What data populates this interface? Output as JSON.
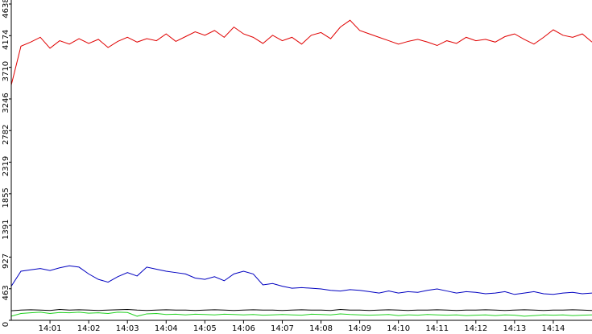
{
  "chart_data": {
    "type": "line",
    "categories": [
      null,
      null,
      null,
      null,
      "14:01",
      null,
      null,
      null,
      "14:02",
      null,
      null,
      null,
      "14:03",
      null,
      null,
      null,
      "14:04",
      null,
      null,
      null,
      "14:05",
      null,
      null,
      null,
      "14:06",
      null,
      null,
      null,
      "14:07",
      null,
      null,
      null,
      "14:08",
      null,
      null,
      null,
      "14:09",
      null,
      null,
      null,
      "14:10",
      null,
      null,
      null,
      "14:11",
      null,
      null,
      null,
      "14:12",
      null,
      null,
      null,
      "14:13",
      null,
      null,
      null,
      "14:14",
      null,
      null,
      null,
      null
    ],
    "series": [
      {
        "color": "#e00000",
        "values": [
          3450,
          4020,
          4080,
          4150,
          3990,
          4100,
          4050,
          4130,
          4060,
          4120,
          4000,
          4090,
          4150,
          4080,
          4130,
          4100,
          4200,
          4090,
          4160,
          4230,
          4180,
          4250,
          4150,
          4300,
          4200,
          4150,
          4060,
          4180,
          4100,
          4150,
          4050,
          4180,
          4220,
          4130,
          4300,
          4400,
          4250,
          4200,
          4150,
          4100,
          4050,
          4090,
          4120,
          4080,
          4030,
          4100,
          4060,
          4150,
          4100,
          4120,
          4080,
          4160,
          4200,
          4120,
          4050,
          4150,
          4260,
          4180,
          4150,
          4200,
          4080
        ]
      },
      {
        "color": "#0000c0",
        "values": [
          500,
          720,
          740,
          760,
          730,
          770,
          800,
          780,
          680,
          600,
          560,
          640,
          700,
          650,
          780,
          750,
          720,
          700,
          680,
          620,
          600,
          640,
          580,
          680,
          720,
          680,
          520,
          540,
          500,
          470,
          480,
          470,
          460,
          440,
          430,
          450,
          440,
          420,
          400,
          430,
          400,
          420,
          410,
          440,
          460,
          430,
          400,
          420,
          410,
          390,
          400,
          420,
          380,
          400,
          420,
          390,
          380,
          400,
          410,
          390,
          400
        ]
      },
      {
        "color": "#000000",
        "values": [
          140,
          150,
          155,
          150,
          145,
          160,
          150,
          155,
          150,
          145,
          150,
          155,
          160,
          150,
          145,
          150,
          155,
          150,
          150,
          145,
          150,
          155,
          150,
          145,
          150,
          155,
          150,
          150,
          145,
          150,
          155,
          150,
          150,
          145,
          160,
          150,
          150,
          145,
          150,
          155,
          150,
          145,
          150,
          150,
          155,
          150,
          145,
          150,
          150,
          155,
          150,
          145,
          150,
          155,
          150,
          145,
          150,
          150,
          155,
          150,
          145
        ]
      },
      {
        "color": "#20d020",
        "values": [
          60,
          100,
          110,
          120,
          100,
          115,
          110,
          120,
          105,
          110,
          100,
          120,
          115,
          60,
          95,
          100,
          85,
          90,
          80,
          90,
          85,
          80,
          90,
          85,
          80,
          85,
          75,
          80,
          85,
          80,
          75,
          90,
          85,
          80,
          95,
          85,
          80,
          75,
          80,
          85,
          70,
          80,
          75,
          85,
          80,
          75,
          80,
          70,
          75,
          80,
          70,
          80,
          75,
          60,
          70,
          80,
          75,
          80,
          70,
          75,
          80
        ]
      }
    ],
    "ylim": [
      0,
      4638
    ],
    "yticks": [
      0,
      463,
      927,
      1391,
      1855,
      2319,
      2782,
      3246,
      3710,
      4174,
      4638
    ]
  }
}
